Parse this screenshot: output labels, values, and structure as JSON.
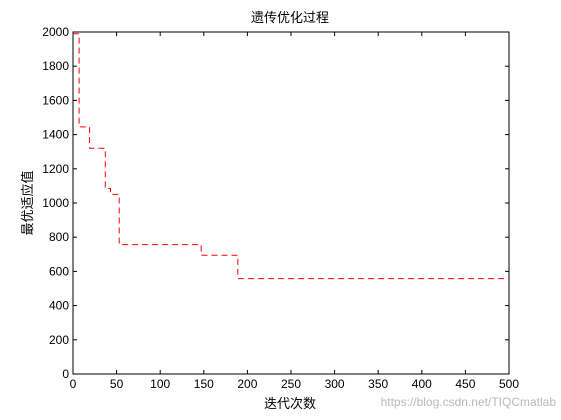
{
  "chart_data": {
    "type": "line",
    "title": "遗传优化过程",
    "xlabel": "迭代次数",
    "ylabel": "最优适应值",
    "xlim": [
      0,
      500
    ],
    "ylim": [
      0,
      2000
    ],
    "xticks": [
      "0",
      "50",
      "100",
      "150",
      "200",
      "250",
      "300",
      "350",
      "400",
      "450",
      "500"
    ],
    "yticks": [
      "0",
      "200",
      "400",
      "600",
      "800",
      "1000",
      "1200",
      "1400",
      "1600",
      "1800",
      "2000"
    ],
    "grid": false,
    "line_color": "#ff0000",
    "line_style": "dashed",
    "series": [
      {
        "x": [
          0,
          7,
          7,
          19,
          19,
          37,
          37,
          43,
          43,
          53,
          53,
          57,
          57,
          147,
          147,
          189,
          189,
          500
        ],
        "y": [
          1990,
          1990,
          1445,
          1445,
          1320,
          1320,
          1085,
          1085,
          1050,
          1050,
          760,
          760,
          757,
          757,
          695,
          695,
          558,
          558
        ]
      }
    ]
  },
  "watermark": "https://blog.csdn.net/TIQCmatlab"
}
